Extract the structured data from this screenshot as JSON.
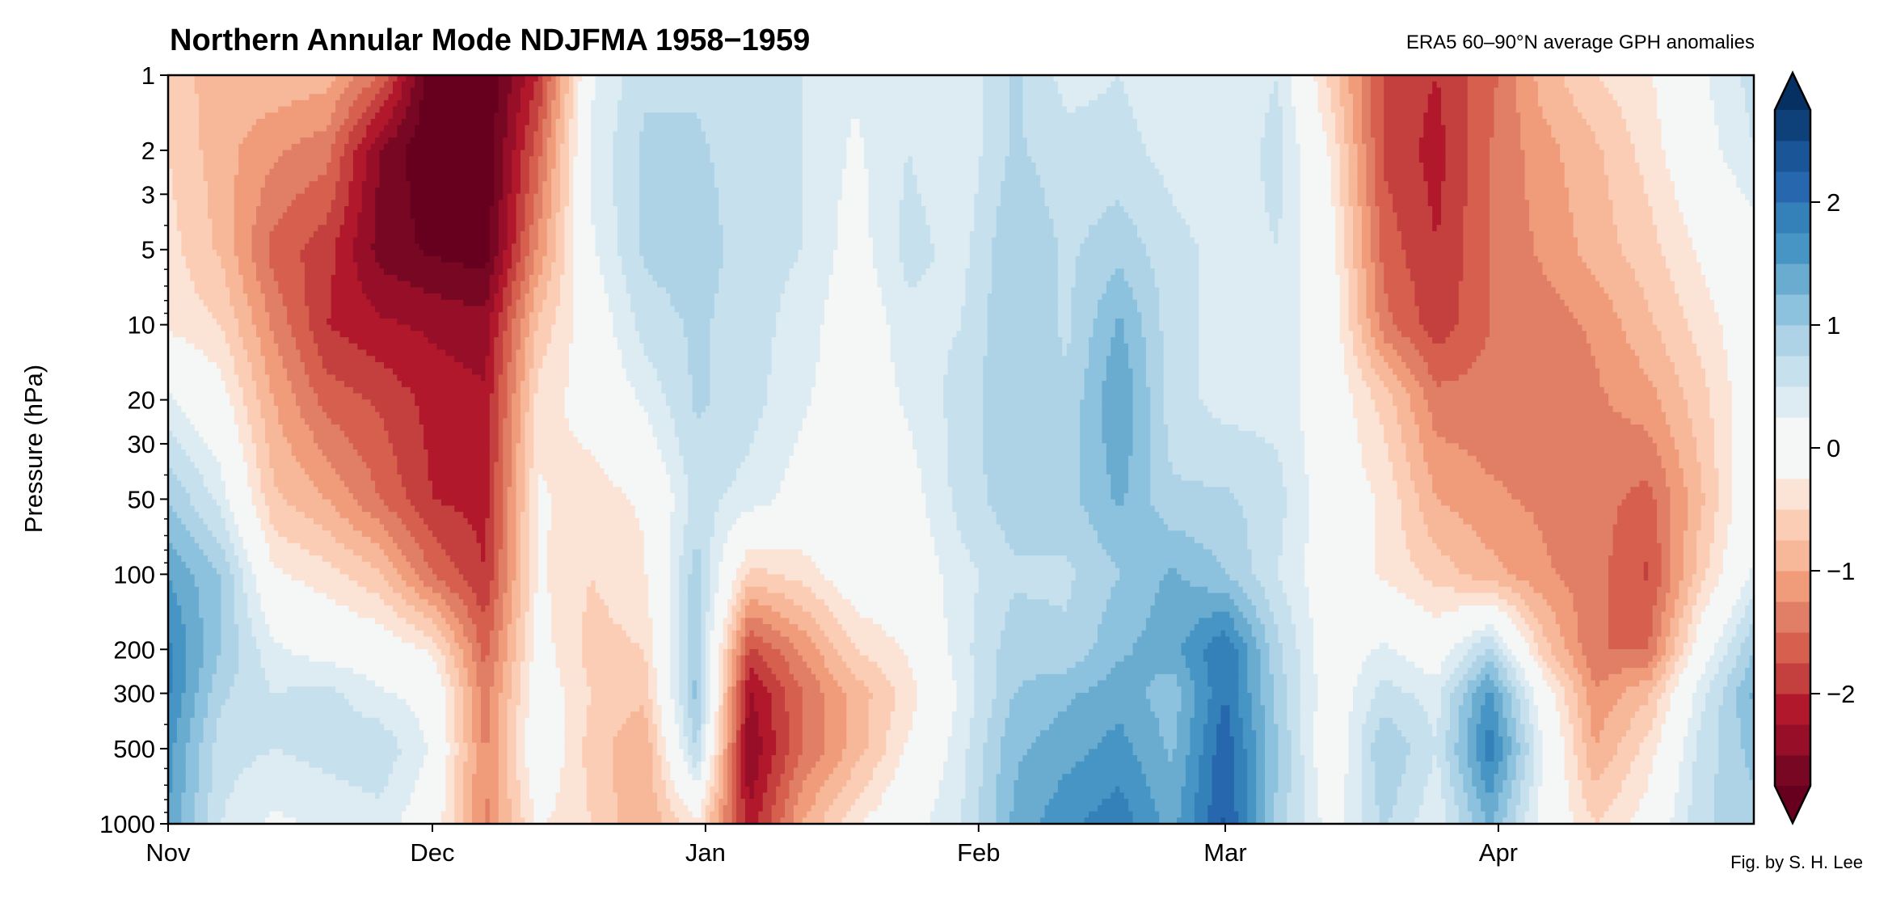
{
  "chart_data": {
    "type": "heatmap",
    "title": "Northern Annular Mode NDJFMA 1958−1959",
    "subtitle": "ERA5 60–90°N average GPH anomalies",
    "credit": "Fig. by S. H. Lee",
    "ylabel": "Pressure (hPa)",
    "xlabel": "",
    "y_scale": "log",
    "y_inverted": true,
    "ylim": [
      1000,
      1
    ],
    "y_ticks": [
      1,
      2,
      3,
      5,
      10,
      20,
      30,
      50,
      100,
      200,
      300,
      500,
      1000
    ],
    "y_tick_labels": [
      "1",
      "2",
      "3",
      "5",
      "10",
      "20",
      "30",
      "50",
      "100",
      "200",
      "300",
      "500",
      "1000"
    ],
    "x_ticks_days": [
      0,
      30,
      61,
      92,
      120,
      151
    ],
    "x_tick_labels": [
      "Nov",
      "Dec",
      "Jan",
      "Feb",
      "Mar",
      "Apr"
    ],
    "x_days_since_label": "Nov 1 1958",
    "xlim_days": [
      0,
      180
    ],
    "colorbar": {
      "ticks": [
        2,
        1,
        0,
        -1,
        -2
      ],
      "tick_labels": [
        "2",
        "1",
        "0",
        "−1",
        "−2"
      ],
      "extend": "both",
      "levels": [
        -2.75,
        -2.5,
        -2.25,
        -2.0,
        -1.75,
        -1.5,
        -1.25,
        -1.0,
        -0.75,
        -0.5,
        -0.25,
        0.25,
        0.5,
        0.75,
        1.0,
        1.25,
        1.5,
        1.75,
        2.0,
        2.25,
        2.5,
        2.75
      ],
      "colors": [
        "#67001f",
        "#770722",
        "#970e28",
        "#b2182b",
        "#c4403e",
        "#d6604d",
        "#e17e66",
        "#f09c7b",
        "#f7b799",
        "#fccdb5",
        "#fbe3d6",
        "#f5f6f6",
        "#ddebf2",
        "#c7e0ed",
        "#aed3e6",
        "#8dc2de",
        "#6aacd0",
        "#4695c4",
        "#3480b9",
        "#2767ad",
        "#1a5597",
        "#0e4179",
        "#053061"
      ]
    },
    "pressure_levels": [
      1,
      2,
      5,
      10,
      20,
      50,
      100,
      200,
      300,
      500,
      1000
    ],
    "days": [
      0,
      6,
      12,
      18,
      24,
      30,
      36,
      42,
      48,
      54,
      60,
      66,
      72,
      78,
      84,
      90,
      96,
      102,
      108,
      114,
      120,
      126,
      132,
      138,
      144,
      150,
      156,
      162,
      168,
      174,
      180
    ],
    "values_by_day": [
      [
        -0.6,
        -0.5,
        -0.4,
        -0.3,
        0.3,
        1.0,
        1.5,
        1.8,
        1.8,
        1.6,
        1.5
      ],
      [
        -0.9,
        -0.9,
        -0.8,
        -0.5,
        -0.1,
        0.4,
        1.0,
        1.0,
        0.8,
        0.6,
        0.5
      ],
      [
        -0.8,
        -1.2,
        -1.6,
        -1.3,
        -1.0,
        -0.7,
        -0.2,
        0.3,
        0.5,
        0.5,
        0.2
      ],
      [
        -0.9,
        -1.4,
        -1.9,
        -2.0,
        -1.6,
        -1.0,
        -0.4,
        0.1,
        0.6,
        0.6,
        0.3
      ],
      [
        -1.5,
        -2.5,
        -2.6,
        -2.2,
        -1.8,
        -1.5,
        -0.7,
        0.0,
        0.3,
        0.7,
        0.4
      ],
      [
        -3.0,
        -3.0,
        -2.8,
        -2.3,
        -2.1,
        -2.0,
        -1.5,
        -0.3,
        0.1,
        0.2,
        0.0
      ],
      [
        -3.0,
        -3.0,
        -2.9,
        -2.4,
        -2.2,
        -2.1,
        -2.0,
        -1.6,
        -1.4,
        -1.3,
        -1.3
      ],
      [
        -2.0,
        -1.6,
        -1.2,
        -0.7,
        -0.4,
        -0.2,
        -0.2,
        -0.1,
        0.0,
        0.1,
        -0.2
      ],
      [
        0.2,
        0.3,
        0.2,
        0.0,
        -0.1,
        -0.4,
        -0.5,
        -0.6,
        -0.5,
        -0.6,
        -0.5
      ],
      [
        0.7,
        0.8,
        0.8,
        0.6,
        0.3,
        -0.2,
        -0.3,
        -0.5,
        -0.7,
        -1.0,
        -1.0
      ],
      [
        0.7,
        0.8,
        0.9,
        0.8,
        0.8,
        0.6,
        0.9,
        1.0,
        1.1,
        0.8,
        -0.3
      ],
      [
        0.5,
        0.6,
        0.6,
        0.6,
        0.6,
        0.4,
        -0.6,
        -1.8,
        -2.3,
        -2.5,
        -2.2
      ],
      [
        0.5,
        0.5,
        0.5,
        0.4,
        0.3,
        0.1,
        -0.4,
        -1.2,
        -1.5,
        -1.5,
        -1.0
      ],
      [
        0.3,
        0.2,
        0.1,
        0.0,
        0.0,
        0.0,
        0.0,
        -0.5,
        -0.9,
        -0.9,
        -0.3
      ],
      [
        0.5,
        0.5,
        0.6,
        0.4,
        0.3,
        0.1,
        0.0,
        -0.2,
        -0.4,
        -0.2,
        0.1
      ],
      [
        0.3,
        0.3,
        0.4,
        0.5,
        0.6,
        0.6,
        0.4,
        0.4,
        0.3,
        0.4,
        0.5
      ],
      [
        0.8,
        0.8,
        1.0,
        1.0,
        1.0,
        0.9,
        0.7,
        0.9,
        1.0,
        1.2,
        1.3
      ],
      [
        0.4,
        0.6,
        0.7,
        0.7,
        0.8,
        0.9,
        0.7,
        0.8,
        1.2,
        1.4,
        1.7
      ],
      [
        0.5,
        0.6,
        0.9,
        1.3,
        1.5,
        1.3,
        1.0,
        1.2,
        1.4,
        1.6,
        1.9
      ],
      [
        0.3,
        0.4,
        0.6,
        0.6,
        0.6,
        0.8,
        1.3,
        1.4,
        1.1,
        1.2,
        1.4
      ],
      [
        0.3,
        0.3,
        0.4,
        0.4,
        0.4,
        0.8,
        1.0,
        2.0,
        2.0,
        2.2,
        2.3
      ],
      [
        0.5,
        0.6,
        0.5,
        0.4,
        0.4,
        0.6,
        0.5,
        0.8,
        0.9,
        1.0,
        0.9
      ],
      [
        -0.6,
        -0.3,
        -0.1,
        0.0,
        0.0,
        0.0,
        0.0,
        0.0,
        0.0,
        -0.1,
        0.1
      ],
      [
        -1.8,
        -1.8,
        -1.6,
        -1.4,
        -0.6,
        -0.3,
        -0.3,
        0.3,
        0.6,
        1.0,
        0.8
      ],
      [
        -2.0,
        -2.1,
        -2.0,
        -1.9,
        -1.4,
        -1.0,
        -0.6,
        0.0,
        0.4,
        0.5,
        0.3
      ],
      [
        -1.6,
        -1.5,
        -1.5,
        -1.5,
        -1.4,
        -1.2,
        -0.9,
        0.8,
        1.6,
        1.9,
        1.3
      ],
      [
        -0.9,
        -1.1,
        -1.2,
        -1.4,
        -1.4,
        -1.3,
        -1.2,
        -0.6,
        0.0,
        0.3,
        0.1
      ],
      [
        -0.5,
        -0.8,
        -0.9,
        -1.2,
        -1.3,
        -1.4,
        -1.4,
        -1.5,
        -1.2,
        -1.0,
        -0.5
      ],
      [
        -0.3,
        -0.4,
        -0.6,
        -0.8,
        -1.1,
        -1.6,
        -1.8,
        -1.5,
        -0.8,
        -0.4,
        -0.1
      ],
      [
        0.2,
        0.1,
        -0.2,
        -0.4,
        -0.6,
        -0.8,
        -0.6,
        0.0,
        0.4,
        0.6,
        0.7
      ],
      [
        0.6,
        0.5,
        0.1,
        0.0,
        0.0,
        0.1,
        0.3,
        1.0,
        1.3,
        1.1,
        0.9
      ]
    ]
  }
}
